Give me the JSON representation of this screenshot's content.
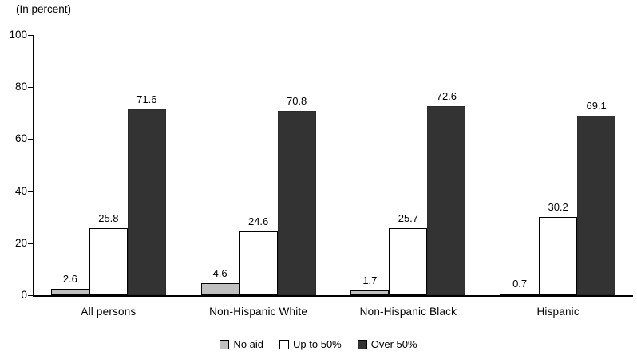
{
  "chart_data": {
    "type": "bar",
    "title": "",
    "axis_note": "(In percent)",
    "categories": [
      "All persons",
      "Non-Hispanic White",
      "Non-Hispanic Black",
      "Hispanic"
    ],
    "series": [
      {
        "name": "No aid",
        "color": "#C0C0C0",
        "border": "#000000",
        "values": [
          2.6,
          4.6,
          1.7,
          0.7
        ]
      },
      {
        "name": "Up to 50%",
        "color": "#FFFFFF",
        "border": "#000000",
        "values": [
          25.8,
          24.6,
          25.7,
          30.2
        ]
      },
      {
        "name": "Over 50%",
        "color": "#333333",
        "border": "#2B2B2B",
        "values": [
          71.6,
          70.8,
          72.6,
          69.1
        ]
      }
    ],
    "ylim": [
      0,
      100
    ],
    "yticks": [
      0,
      20,
      40,
      60,
      80,
      100
    ],
    "grid": false,
    "value_labels_shown": true,
    "legend_position": "bottom",
    "colors": {
      "axis": "#000000",
      "text": "#000000",
      "background": "#FFFFFF"
    }
  }
}
